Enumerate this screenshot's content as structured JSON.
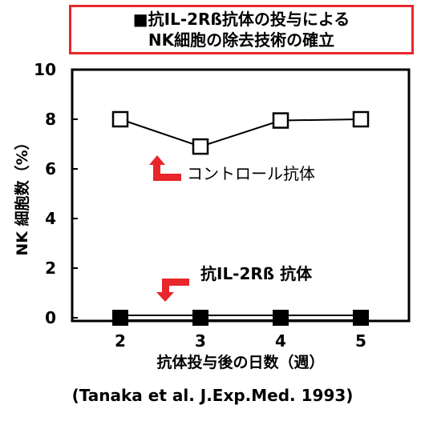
{
  "title": {
    "line1": "■抗IL-2Rß抗体の投与による",
    "line2": "NK細胞の除去技術の確立",
    "border_color": "#e8262b"
  },
  "chart_data": {
    "type": "line",
    "x": [
      2,
      3,
      4,
      5
    ],
    "series": [
      {
        "name": "コントロール抗体",
        "values": [
          8.0,
          6.9,
          7.95,
          8.0
        ],
        "marker": "open-square"
      },
      {
        "name": "抗IL-2Rß 抗体",
        "values": [
          0,
          0,
          0,
          0
        ],
        "marker": "filled-square"
      }
    ],
    "xlabel": "抗体投与後の日数（週）",
    "ylabel": "NK 細胞数（%）",
    "ylim": [
      0,
      10
    ],
    "yticks": [
      0,
      2,
      4,
      6,
      8,
      10
    ],
    "xticks": [
      2,
      3,
      4,
      5
    ],
    "grid": false,
    "arrow_color": "#e8262b"
  },
  "citation": "(Tanaka et al. J.Exp.Med. 1993)"
}
